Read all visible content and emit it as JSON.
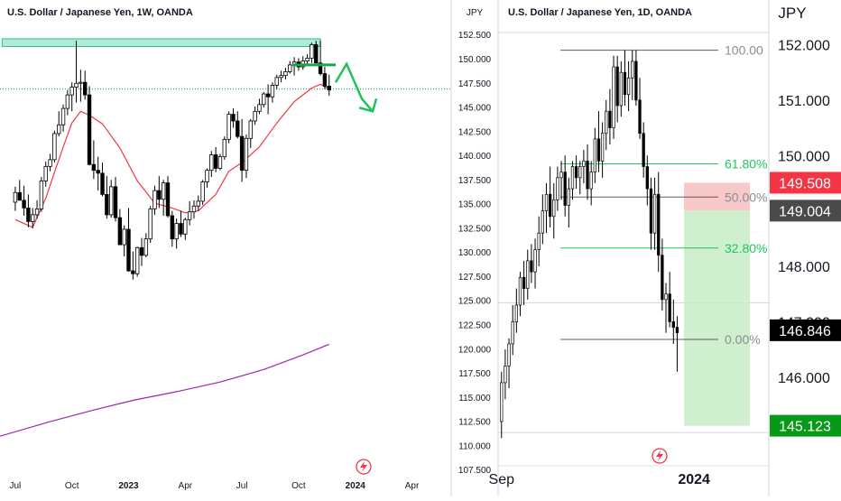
{
  "colors": {
    "bull": "#ffffff",
    "bear": "#000000",
    "ma20": "#f23645",
    "ma200": "#9c27b0",
    "resistance": "#26c281",
    "fib": "#131722",
    "fib_green": "#22c55e",
    "stop_fill": "#f7b6b6",
    "target_fill": "#c8ecc6",
    "label_red": "#f23645",
    "label_dark": "#4a4a4a",
    "label_black": "#000000",
    "label_green": "#089918"
  },
  "icons": {
    "left_logo": "lightning-bolt-icon",
    "right_logo": "lightning-bolt-icon"
  },
  "chart_data": [
    {
      "type": "candlestick",
      "title": "U.S. Dollar / Japanese Yen, 1W, OANDA",
      "currency_label": "JPY",
      "y_ticks": [
        "152.500",
        "150.000",
        "147.500",
        "145.000",
        "142.500",
        "140.000",
        "137.500",
        "135.000",
        "132.500",
        "130.000",
        "127.500",
        "125.000",
        "122.500",
        "120.000",
        "117.500",
        "115.000",
        "112.500",
        "110.000",
        "107.500"
      ],
      "ylim": [
        107.0,
        153.5
      ],
      "x_ticks": [
        "Jul",
        "Oct",
        "2023",
        "Apr",
        "Jul",
        "Oct",
        "2024",
        "Apr"
      ],
      "x_tick_weeks": [
        0,
        13,
        26,
        39,
        52,
        65,
        78,
        91
      ],
      "xlim": [
        -3.5,
        100
      ],
      "candles": [
        [
          135.2,
          136.8,
          134.3,
          136.2
        ],
        [
          136.2,
          137.5,
          135.6,
          135.4
        ],
        [
          135.4,
          136.9,
          133.8,
          134.6
        ],
        [
          134.6,
          136.0,
          132.6,
          133.2
        ],
        [
          133.2,
          134.6,
          132.5,
          133.9
        ],
        [
          133.9,
          135.4,
          133.5,
          134.5
        ],
        [
          134.5,
          137.8,
          134.2,
          137.4
        ],
        [
          137.4,
          139.4,
          136.8,
          138.9
        ],
        [
          138.9,
          140.2,
          138.4,
          139.6
        ],
        [
          139.6,
          142.6,
          139.3,
          142.3
        ],
        [
          142.3,
          144.6,
          142.0,
          143.2
        ],
        [
          143.2,
          145.3,
          142.5,
          144.9
        ],
        [
          144.9,
          146.8,
          144.2,
          146.3
        ],
        [
          146.3,
          147.6,
          144.6,
          147.1
        ],
        [
          147.1,
          151.9,
          145.5,
          147.5
        ],
        [
          147.5,
          148.9,
          145.6,
          147.6
        ],
        [
          147.6,
          148.8,
          145.8,
          146.3
        ],
        [
          146.3,
          147.2,
          139.0,
          139.1
        ],
        [
          139.1,
          141.6,
          137.6,
          138.5
        ],
        [
          138.5,
          139.9,
          136.4,
          138.2
        ],
        [
          138.2,
          139.3,
          135.8,
          136.0
        ],
        [
          136.0,
          137.9,
          133.5,
          133.9
        ],
        [
          133.9,
          137.5,
          133.6,
          136.8
        ],
        [
          136.8,
          137.8,
          133.2,
          133.6
        ],
        [
          133.6,
          134.5,
          130.8,
          130.8
        ],
        [
          130.8,
          132.8,
          129.6,
          132.4
        ],
        [
          132.4,
          134.6,
          128.0,
          128.1
        ],
        [
          128.1,
          130.1,
          127.2,
          127.8
        ],
        [
          127.8,
          130.6,
          127.5,
          130.5
        ],
        [
          130.5,
          131.5,
          128.6,
          129.7
        ],
        [
          129.7,
          132.0,
          129.5,
          131.4
        ],
        [
          131.4,
          134.8,
          131.0,
          134.5
        ],
        [
          134.5,
          136.9,
          133.9,
          136.4
        ],
        [
          136.4,
          137.9,
          134.6,
          135.5
        ],
        [
          135.5,
          137.5,
          133.8,
          137.2
        ],
        [
          137.2,
          137.9,
          133.6,
          133.8
        ],
        [
          133.8,
          134.3,
          130.6,
          131.4
        ],
        [
          131.4,
          133.5,
          130.4,
          133.0
        ],
        [
          133.0,
          134.3,
          131.6,
          131.9
        ],
        [
          131.9,
          133.6,
          131.3,
          133.4
        ],
        [
          133.4,
          135.3,
          132.8,
          134.2
        ],
        [
          134.2,
          135.4,
          133.5,
          134.8
        ],
        [
          134.8,
          135.9,
          134.3,
          135.3
        ],
        [
          135.3,
          137.5,
          134.9,
          137.3
        ],
        [
          137.3,
          138.7,
          136.7,
          138.5
        ],
        [
          138.5,
          140.5,
          137.8,
          140.1
        ],
        [
          140.1,
          140.9,
          138.3,
          138.7
        ],
        [
          138.7,
          140.2,
          138.5,
          139.9
        ],
        [
          139.9,
          142.0,
          139.6,
          141.7
        ],
        [
          141.7,
          144.6,
          141.3,
          144.3
        ],
        [
          144.3,
          144.9,
          142.9,
          143.6
        ],
        [
          143.6,
          144.6,
          141.8,
          142.0
        ],
        [
          142.0,
          143.8,
          137.3,
          138.5
        ],
        [
          138.5,
          142.2,
          137.7,
          141.8
        ],
        [
          141.8,
          143.8,
          140.8,
          143.6
        ],
        [
          143.6,
          145.1,
          143.2,
          144.6
        ],
        [
          144.6,
          145.9,
          144.3,
          145.3
        ],
        [
          145.3,
          146.6,
          145.0,
          146.4
        ],
        [
          146.4,
          147.4,
          144.3,
          146.1
        ],
        [
          146.1,
          147.6,
          145.5,
          147.3
        ],
        [
          147.3,
          148.4,
          146.9,
          148.1
        ],
        [
          148.1,
          148.8,
          147.6,
          148.3
        ],
        [
          148.3,
          149.1,
          147.9,
          148.7
        ],
        [
          148.7,
          149.8,
          148.5,
          149.4
        ],
        [
          149.4,
          150.2,
          148.3,
          149.7
        ],
        [
          149.7,
          150.1,
          148.8,
          149.2
        ],
        [
          149.2,
          150.3,
          148.9,
          149.8
        ],
        [
          149.8,
          150.5,
          149.5,
          150.1
        ],
        [
          150.1,
          151.7,
          149.6,
          151.5
        ],
        [
          151.5,
          151.9,
          149.8,
          149.6
        ],
        [
          149.6,
          151.9,
          148.3,
          148.5
        ],
        [
          148.5,
          149.2,
          146.9,
          147.2
        ],
        [
          147.2,
          148.4,
          146.2,
          146.8
        ]
      ],
      "sma20": [
        [
          0,
          133.4
        ],
        [
          4,
          132.6
        ],
        [
          7,
          135.6
        ],
        [
          9,
          138.3
        ],
        [
          11,
          140.9
        ],
        [
          13,
          143.4
        ],
        [
          15,
          144.6
        ],
        [
          17,
          144.2
        ],
        [
          20,
          143.3
        ],
        [
          24,
          140.8
        ],
        [
          28,
          137.4
        ],
        [
          32,
          135.1
        ],
        [
          36,
          134.6
        ],
        [
          39,
          134.1
        ],
        [
          42,
          134.3
        ],
        [
          46,
          136.0
        ],
        [
          49,
          138.4
        ],
        [
          52,
          139.3
        ],
        [
          56,
          140.9
        ],
        [
          60,
          143.4
        ],
        [
          64,
          145.6
        ],
        [
          68,
          147.0
        ],
        [
          70,
          147.4
        ],
        [
          72,
          146.9
        ]
      ],
      "sma200": [
        [
          -3.5,
          111.0
        ],
        [
          8,
          112.5
        ],
        [
          18,
          113.7
        ],
        [
          27,
          114.7
        ],
        [
          37,
          115.6
        ],
        [
          47,
          116.6
        ],
        [
          57,
          117.9
        ],
        [
          66,
          119.4
        ],
        [
          72,
          120.5
        ]
      ],
      "resistance_zone": [
        151.3,
        152.1
      ],
      "resistance_extent": [
        -3,
        70
      ],
      "horizontal_line": {
        "value": 149.4,
        "from": 63.5,
        "to": 73.5
      },
      "projection_arrow": [
        [
          73.5,
          147.6
        ],
        [
          76.0,
          149.5
        ],
        [
          79.5,
          145.9
        ],
        [
          82.0,
          144.6
        ]
      ],
      "dotted_line": {
        "value": 146.9,
        "from": -3.5,
        "to": 100
      }
    },
    {
      "type": "candlestick",
      "title": "U.S. Dollar / Japanese Yen, 1D, OANDA",
      "currency_label": "JPY",
      "y_ticks": [
        "152.000",
        "151.000",
        "150.000",
        "149.000",
        "148.000",
        "147.000",
        "146.000"
      ],
      "ylim": [
        144.4,
        152.35
      ],
      "x_ticks": [
        "Sep",
        "2024"
      ],
      "x_tick_days": [
        0,
        85
      ],
      "xlim": [
        -1.5,
        118
      ],
      "candles": [
        [
          145.2,
          146.1,
          144.9,
          145.9
        ],
        [
          145.9,
          146.5,
          145.6,
          146.2
        ],
        [
          146.2,
          146.7,
          145.8,
          146.6
        ],
        [
          146.6,
          147.3,
          146.4,
          147.0
        ],
        [
          147.0,
          147.6,
          146.8,
          147.3
        ],
        [
          147.3,
          147.9,
          147.1,
          147.8
        ],
        [
          147.8,
          148.1,
          147.3,
          147.6
        ],
        [
          147.6,
          148.3,
          147.4,
          148.1
        ],
        [
          148.1,
          148.4,
          147.7,
          147.9
        ],
        [
          147.9,
          148.5,
          147.6,
          148.3
        ],
        [
          148.3,
          148.9,
          148.0,
          148.6
        ],
        [
          148.6,
          149.3,
          148.4,
          149.0
        ],
        [
          149.0,
          149.5,
          148.6,
          149.3
        ],
        [
          149.3,
          149.8,
          148.7,
          148.9
        ],
        [
          148.9,
          149.5,
          148.5,
          149.2
        ],
        [
          149.2,
          149.8,
          149.0,
          149.6
        ],
        [
          149.6,
          149.9,
          149.2,
          149.7
        ],
        [
          149.7,
          150.0,
          148.9,
          149.1
        ],
        [
          149.1,
          149.6,
          148.7,
          149.4
        ],
        [
          149.4,
          149.9,
          149.2,
          149.8
        ],
        [
          149.8,
          150.0,
          149.4,
          149.6
        ],
        [
          149.6,
          149.9,
          149.3,
          149.8
        ],
        [
          149.8,
          150.1,
          149.5,
          149.9
        ],
        [
          149.9,
          150.2,
          149.2,
          149.4
        ],
        [
          149.4,
          149.9,
          149.1,
          149.7
        ],
        [
          149.7,
          150.5,
          149.5,
          150.3
        ],
        [
          150.3,
          150.8,
          149.7,
          149.9
        ],
        [
          149.9,
          150.6,
          149.6,
          150.4
        ],
        [
          150.4,
          151.0,
          150.1,
          150.8
        ],
        [
          150.8,
          151.2,
          150.2,
          150.5
        ],
        [
          150.5,
          151.8,
          150.3,
          151.6
        ],
        [
          151.6,
          151.8,
          150.6,
          150.9
        ],
        [
          150.9,
          151.7,
          150.7,
          151.5
        ],
        [
          151.5,
          151.9,
          150.9,
          151.1
        ],
        [
          151.1,
          151.7,
          150.8,
          151.4
        ],
        [
          151.4,
          151.9,
          151.0,
          151.7
        ],
        [
          151.7,
          151.9,
          150.9,
          151.0
        ],
        [
          151.0,
          151.4,
          150.3,
          150.4
        ],
        [
          150.4,
          150.6,
          149.6,
          149.8
        ],
        [
          149.8,
          150.0,
          149.1,
          149.4
        ],
        [
          149.4,
          149.6,
          148.3,
          148.6
        ],
        [
          148.6,
          149.6,
          148.3,
          149.3
        ],
        [
          149.3,
          149.7,
          147.9,
          148.2
        ],
        [
          148.2,
          148.5,
          147.2,
          147.4
        ],
        [
          147.4,
          147.7,
          146.8,
          147.5
        ],
        [
          147.5,
          147.9,
          146.9,
          147.0
        ],
        [
          147.0,
          147.4,
          146.6,
          146.9
        ],
        [
          146.9,
          147.1,
          146.1,
          146.8
        ]
      ],
      "fib_levels": [
        {
          "label": "100.00",
          "value": 151.9,
          "color_key": "fib"
        },
        {
          "label": "61.80%",
          "value": 149.85,
          "color_key": "fib_green"
        },
        {
          "label": "50.00%",
          "value": 149.25,
          "color_key": "fib"
        },
        {
          "label": "32.80%",
          "value": 148.33,
          "color_key": "fib_green"
        },
        {
          "label": "0.00%",
          "value": 146.68,
          "color_key": "fib"
        }
      ],
      "fib_line_from_day": 26,
      "grey_levels": [
        152.22,
        147.34,
        145.0
      ],
      "position": {
        "stop_top": 149.508,
        "entry": 149.004,
        "target": 145.123,
        "stop_label": "149.508",
        "entry_label": "149.004",
        "target_label": "145.123"
      },
      "last_price": 146.846,
      "last_price_label": "146.846"
    }
  ]
}
